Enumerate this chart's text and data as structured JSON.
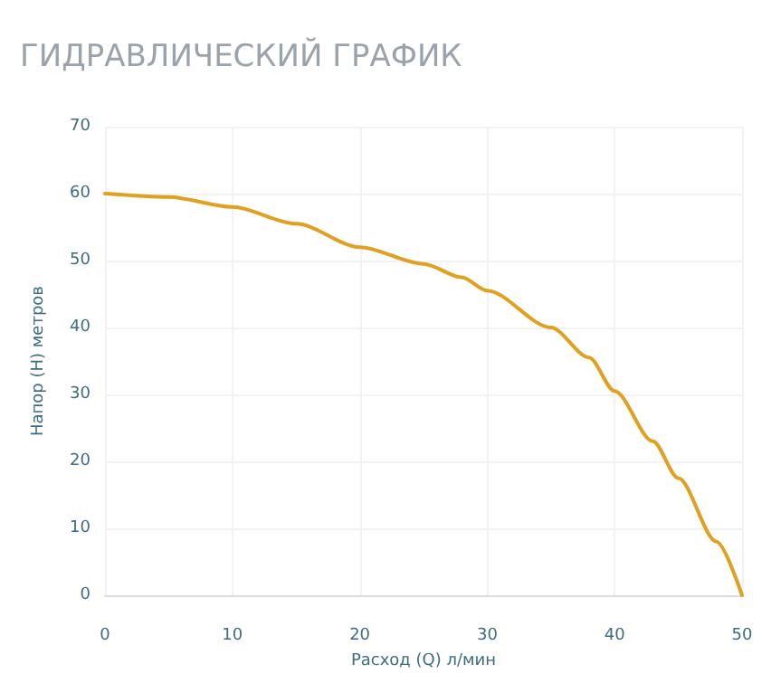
{
  "chart_data": {
    "type": "line",
    "title": "ГИДРАВЛИЧЕСКИЙ ГРАФИК",
    "xlabel": "Расход (Q) л/мин",
    "ylabel": "Напор (Н) метров",
    "x": [
      0,
      5,
      10,
      15,
      20,
      25,
      28,
      30,
      35,
      38,
      40,
      43,
      45,
      48,
      50
    ],
    "series": [
      {
        "color": "#e0a020",
        "values": [
          60,
          59.5,
          58,
          55.5,
          52,
          49.5,
          47.5,
          45.5,
          40,
          35.5,
          30.5,
          23,
          17.5,
          8,
          0
        ]
      }
    ],
    "xlim": [
      0,
      50
    ],
    "xticks": [
      0,
      10,
      20,
      30,
      40,
      50
    ],
    "ylim": [
      0,
      70
    ],
    "yticks": [
      0,
      10,
      20,
      30,
      40,
      50,
      60,
      70
    ],
    "grid": true,
    "marker": "none",
    "line_style": "solid"
  }
}
